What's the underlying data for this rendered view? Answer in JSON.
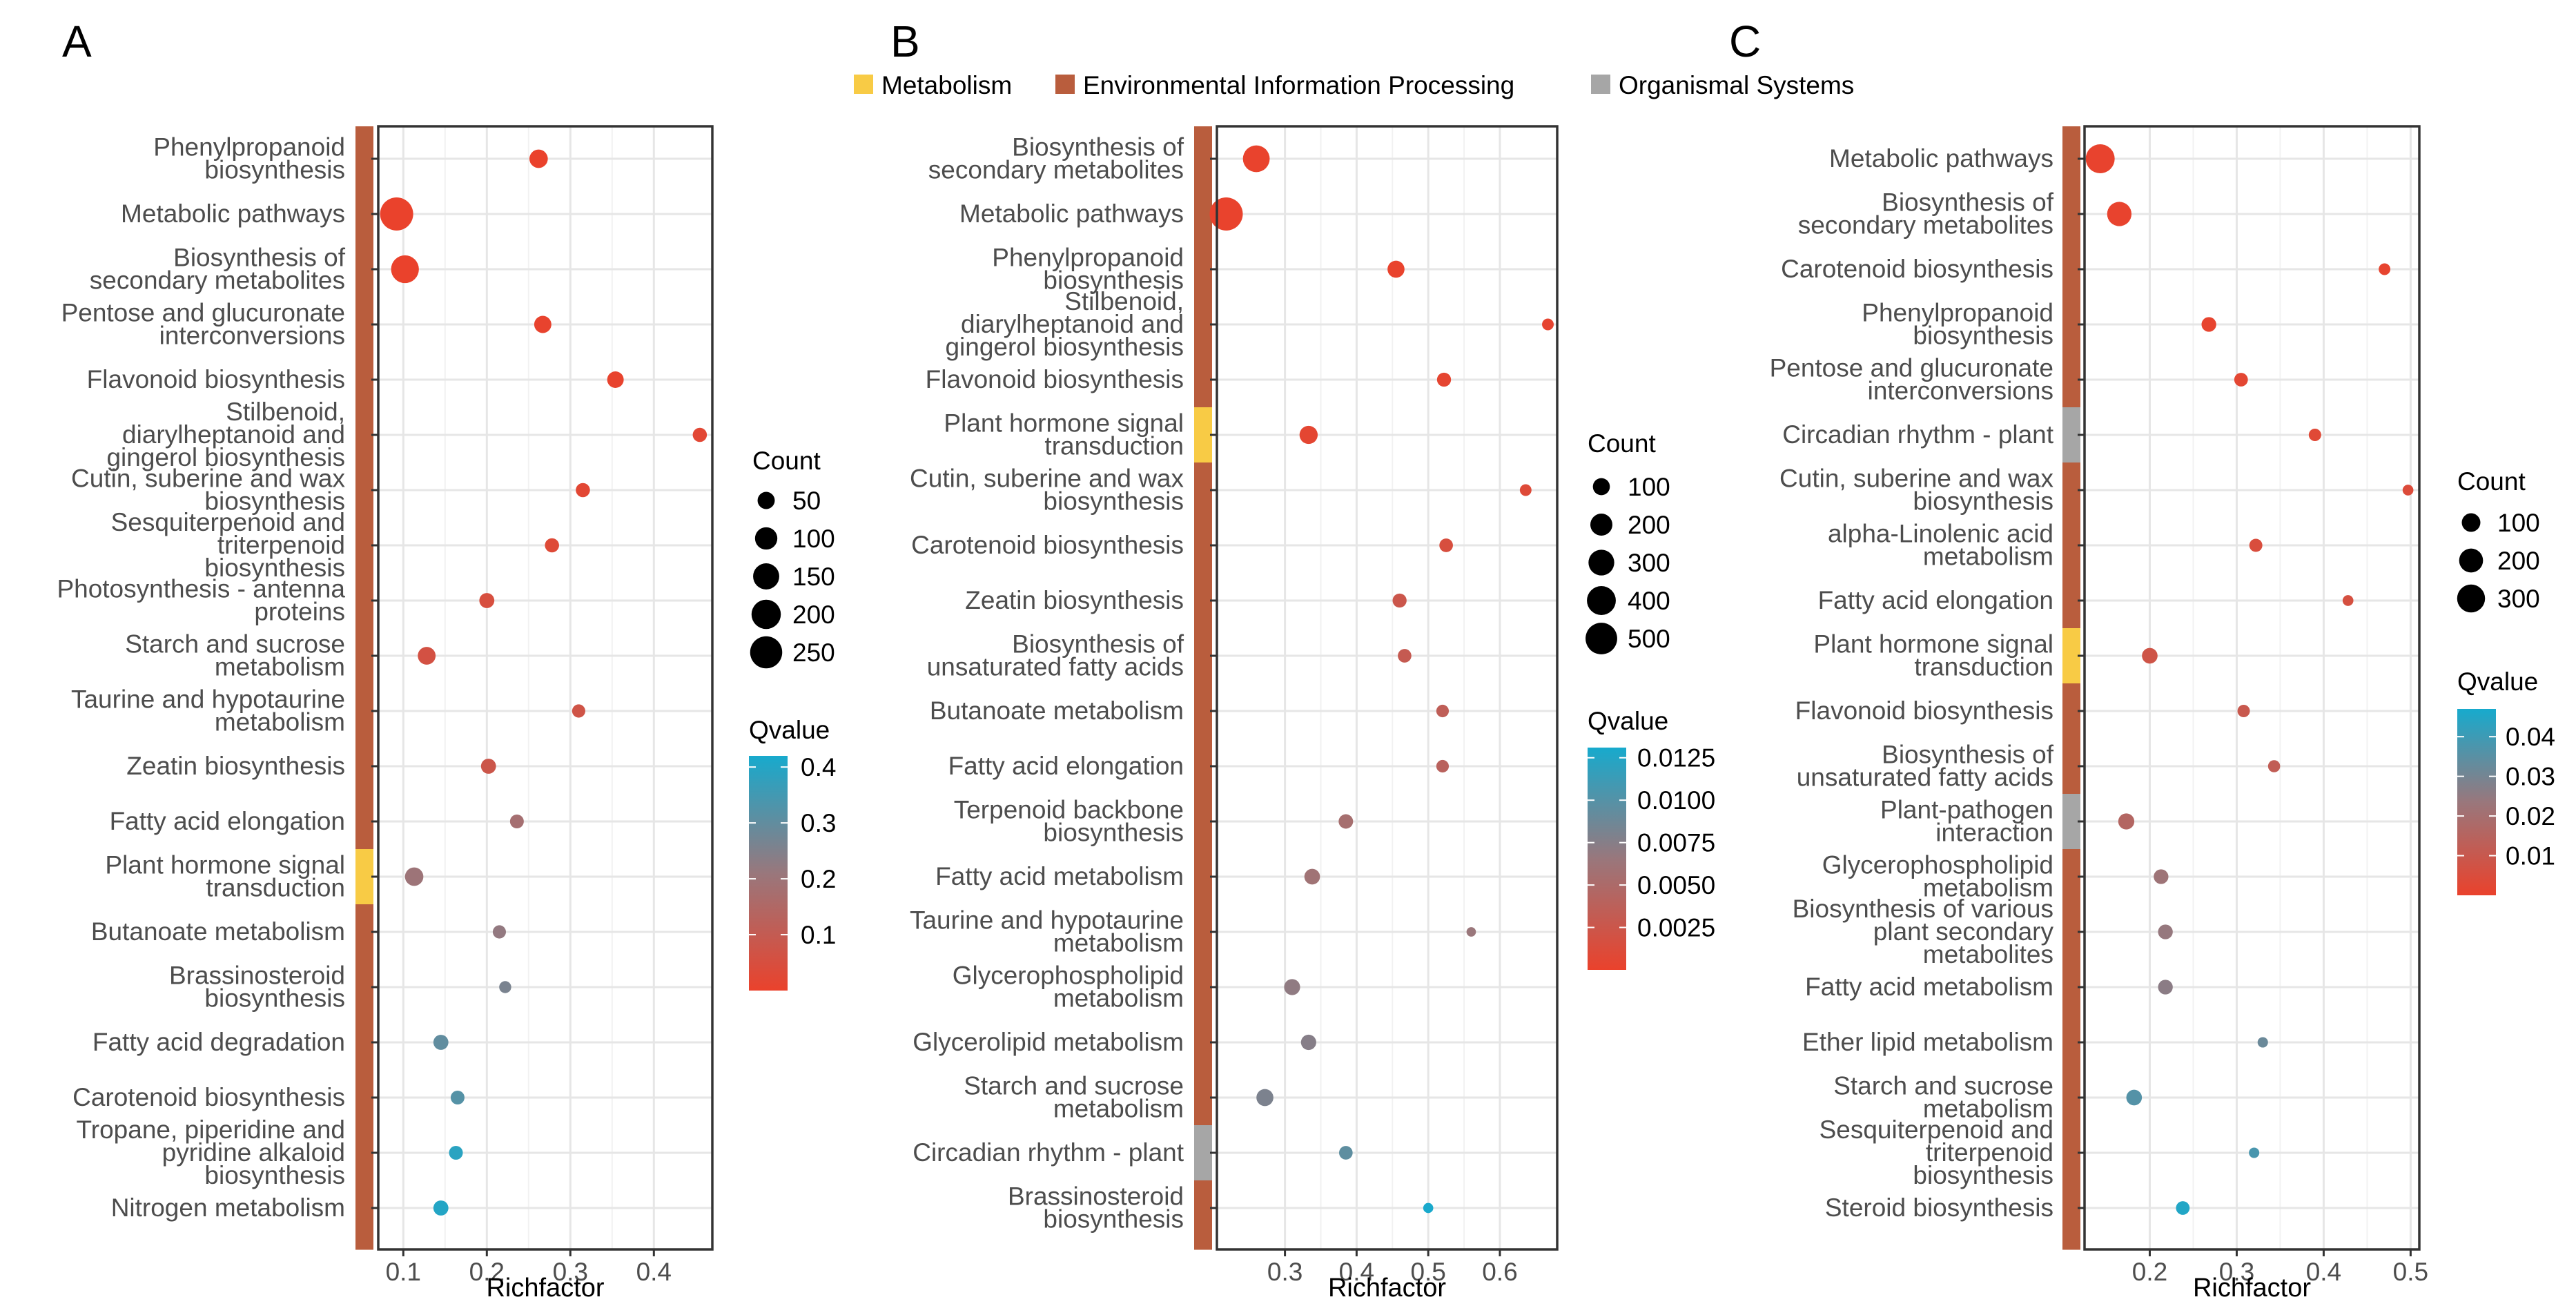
{
  "figure": {
    "legend_top": {
      "items": [
        {
          "label": "Metabolism",
          "color": "#F8CB45"
        },
        {
          "label": "Environmental Information Processing",
          "color": "#B95D3D"
        },
        {
          "label": "Organismal Systems",
          "color": "#A6A6A6"
        }
      ]
    }
  },
  "chart_data": [
    {
      "panel": "A",
      "type": "scatter",
      "xlabel": "Richfactor",
      "xlim": [
        0.07,
        0.47
      ],
      "xticks": [
        0.1,
        0.2,
        0.3,
        0.4
      ],
      "tick_labels": [
        "0.1",
        "0.2",
        "0.3",
        "0.4"
      ],
      "count_legend": {
        "title": "Count",
        "values": [
          50,
          100,
          150,
          200,
          250
        ],
        "labels": [
          "50",
          "100",
          "150",
          "200",
          "250"
        ]
      },
      "count_range": [
        10,
        270
      ],
      "qvalue_legend": {
        "title": "Qvalue",
        "range": [
          0.0,
          0.42
        ],
        "ticks": [
          0.1,
          0.2,
          0.3,
          0.4
        ],
        "labels": [
          "0.1",
          "0.2",
          "0.3",
          "0.4"
        ]
      },
      "pathways": [
        {
          "label": [
            "Phenylpropanoid",
            "biosynthesis"
          ],
          "rich": 0.262,
          "count": 60,
          "q": 0.001,
          "cat": "Environmental Information Processing"
        },
        {
          "label": [
            "Metabolic pathways"
          ],
          "rich": 0.092,
          "count": 270,
          "q": 0.001,
          "cat": "Environmental Information Processing"
        },
        {
          "label": [
            "Biosynthesis of",
            "secondary metabolites"
          ],
          "rich": 0.102,
          "count": 175,
          "q": 0.001,
          "cat": "Environmental Information Processing"
        },
        {
          "label": [
            "Pentose and glucuronate",
            "interconversions"
          ],
          "rich": 0.267,
          "count": 50,
          "q": 0.005,
          "cat": "Environmental Information Processing"
        },
        {
          "label": [
            "Flavonoid biosynthesis"
          ],
          "rich": 0.354,
          "count": 45,
          "q": 0.005,
          "cat": "Environmental Information Processing"
        },
        {
          "label": [
            "Stilbenoid,",
            "diarylheptanoid and",
            "gingerol biosynthesis"
          ],
          "rich": 0.455,
          "count": 30,
          "q": 0.02,
          "cat": "Environmental Information Processing"
        },
        {
          "label": [
            "Cutin, suberine and wax",
            "biosynthesis"
          ],
          "rich": 0.315,
          "count": 30,
          "q": 0.02,
          "cat": "Environmental Information Processing"
        },
        {
          "label": [
            "Sesquiterpenoid and",
            "triterpenoid",
            "biosynthesis"
          ],
          "rich": 0.278,
          "count": 30,
          "q": 0.03,
          "cat": "Environmental Information Processing"
        },
        {
          "label": [
            "Photosynthesis - antenna",
            "proteins"
          ],
          "rich": 0.2,
          "count": 35,
          "q": 0.05,
          "cat": "Environmental Information Processing"
        },
        {
          "label": [
            "Starch and sucrose",
            "metabolism"
          ],
          "rich": 0.128,
          "count": 55,
          "q": 0.06,
          "cat": "Environmental Information Processing"
        },
        {
          "label": [
            "Taurine and hypotaurine",
            "metabolism"
          ],
          "rich": 0.31,
          "count": 25,
          "q": 0.07,
          "cat": "Environmental Information Processing"
        },
        {
          "label": [
            "Zeatin biosynthesis"
          ],
          "rich": 0.202,
          "count": 35,
          "q": 0.08,
          "cat": "Environmental Information Processing"
        },
        {
          "label": [
            "Fatty acid elongation"
          ],
          "rich": 0.236,
          "count": 28,
          "q": 0.18,
          "cat": "Environmental Information Processing"
        },
        {
          "label": [
            "Plant hormone signal",
            "transduction"
          ],
          "rich": 0.113,
          "count": 60,
          "q": 0.2,
          "cat": "Metabolism"
        },
        {
          "label": [
            "Butanoate metabolism"
          ],
          "rich": 0.215,
          "count": 25,
          "q": 0.22,
          "cat": "Environmental Information Processing"
        },
        {
          "label": [
            "Brassinosteroid",
            "biosynthesis"
          ],
          "rich": 0.222,
          "count": 20,
          "q": 0.26,
          "cat": "Environmental Information Processing"
        },
        {
          "label": [
            "Fatty acid degradation"
          ],
          "rich": 0.145,
          "count": 35,
          "q": 0.3,
          "cat": "Environmental Information Processing"
        },
        {
          "label": [
            "Carotenoid biosynthesis"
          ],
          "rich": 0.165,
          "count": 28,
          "q": 0.32,
          "cat": "Environmental Information Processing"
        },
        {
          "label": [
            "Tropane, piperidine and",
            "pyridine alkaloid",
            "biosynthesis"
          ],
          "rich": 0.163,
          "count": 28,
          "q": 0.39,
          "cat": "Environmental Information Processing"
        },
        {
          "label": [
            "Nitrogen metabolism"
          ],
          "rich": 0.145,
          "count": 35,
          "q": 0.4,
          "cat": "Environmental Information Processing"
        }
      ]
    },
    {
      "panel": "B",
      "type": "scatter",
      "xlabel": "Richfactor",
      "xlim": [
        0.205,
        0.68
      ],
      "xticks": [
        0.3,
        0.4,
        0.5,
        0.6
      ],
      "tick_labels": [
        "0.3",
        "0.4",
        "0.5",
        "0.6"
      ],
      "count_legend": {
        "title": "Count",
        "values": [
          100,
          200,
          300,
          400,
          500
        ],
        "labels": [
          "100",
          "200",
          "300",
          "400",
          "500"
        ]
      },
      "count_range": [
        20,
        560
      ],
      "qvalue_legend": {
        "title": "Qvalue",
        "range": [
          0.0,
          0.0131
        ],
        "ticks": [
          0.0025,
          0.005,
          0.0075,
          0.01,
          0.0125
        ],
        "labels": [
          "0.0025",
          "0.0050",
          "0.0075",
          "0.0100",
          "0.0125"
        ]
      },
      "pathways": [
        {
          "label": [
            "Biosynthesis of",
            "secondary metabolites"
          ],
          "rich": 0.26,
          "count": 330,
          "q": 0.0001,
          "cat": "Environmental Information Processing"
        },
        {
          "label": [
            "Metabolic pathways"
          ],
          "rich": 0.218,
          "count": 560,
          "q": 0.0001,
          "cat": "Environmental Information Processing"
        },
        {
          "label": [
            "Phenylpropanoid",
            "biosynthesis"
          ],
          "rich": 0.455,
          "count": 100,
          "q": 0.0001,
          "cat": "Environmental Information Processing"
        },
        {
          "label": [
            "Stilbenoid,",
            "diarylheptanoid and",
            "gingerol biosynthesis"
          ],
          "rich": 0.667,
          "count": 38,
          "q": 0.0003,
          "cat": "Environmental Information Processing"
        },
        {
          "label": [
            "Flavonoid biosynthesis"
          ],
          "rich": 0.522,
          "count": 60,
          "q": 0.0004,
          "cat": "Environmental Information Processing"
        },
        {
          "label": [
            "Plant hormone signal",
            "transduction"
          ],
          "rich": 0.333,
          "count": 120,
          "q": 0.0005,
          "cat": "Metabolism"
        },
        {
          "label": [
            "Cutin, suberine and wax",
            "biosynthesis"
          ],
          "rich": 0.636,
          "count": 38,
          "q": 0.001,
          "cat": "Environmental Information Processing"
        },
        {
          "label": [
            "Carotenoid biosynthesis"
          ],
          "rich": 0.525,
          "count": 55,
          "q": 0.0015,
          "cat": "Environmental Information Processing"
        },
        {
          "label": [
            "Zeatin biosynthesis"
          ],
          "rich": 0.46,
          "count": 60,
          "q": 0.0025,
          "cat": "Environmental Information Processing"
        },
        {
          "label": [
            "Biosynthesis of",
            "unsaturated fatty acids"
          ],
          "rich": 0.467,
          "count": 55,
          "q": 0.003,
          "cat": "Environmental Information Processing"
        },
        {
          "label": [
            "Butanoate metabolism"
          ],
          "rich": 0.52,
          "count": 45,
          "q": 0.0035,
          "cat": "Environmental Information Processing"
        },
        {
          "label": [
            "Fatty acid elongation"
          ],
          "rich": 0.52,
          "count": 45,
          "q": 0.004,
          "cat": "Environmental Information Processing"
        },
        {
          "label": [
            "Terpenoid backbone",
            "biosynthesis"
          ],
          "rich": 0.385,
          "count": 65,
          "q": 0.0055,
          "cat": "Environmental Information Processing"
        },
        {
          "label": [
            "Fatty acid metabolism"
          ],
          "rich": 0.338,
          "count": 80,
          "q": 0.006,
          "cat": "Environmental Information Processing"
        },
        {
          "label": [
            "Taurine and hypotaurine",
            "metabolism"
          ],
          "rich": 0.56,
          "count": 25,
          "q": 0.0065,
          "cat": "Environmental Information Processing"
        },
        {
          "label": [
            "Glycerophospholipid",
            "metabolism"
          ],
          "rich": 0.31,
          "count": 85,
          "q": 0.007,
          "cat": "Environmental Information Processing"
        },
        {
          "label": [
            "Glycerolipid metabolism"
          ],
          "rich": 0.333,
          "count": 75,
          "q": 0.0075,
          "cat": "Environmental Information Processing"
        },
        {
          "label": [
            "Starch and sucrose",
            "metabolism"
          ],
          "rich": 0.272,
          "count": 100,
          "q": 0.008,
          "cat": "Environmental Information Processing"
        },
        {
          "label": [
            "Circadian rhythm - plant"
          ],
          "rich": 0.385,
          "count": 55,
          "q": 0.0095,
          "cat": "Organismal Systems"
        },
        {
          "label": [
            "Brassinosteroid",
            "biosynthesis"
          ],
          "rich": 0.5,
          "count": 28,
          "q": 0.013,
          "cat": "Environmental Information Processing"
        }
      ]
    },
    {
      "panel": "C",
      "type": "scatter",
      "xlabel": "Richfactor",
      "xlim": [
        0.125,
        0.51
      ],
      "xticks": [
        0.2,
        0.3,
        0.4,
        0.5
      ],
      "tick_labels": [
        "0.2",
        "0.3",
        "0.4",
        "0.5"
      ],
      "count_legend": {
        "title": "Count",
        "values": [
          100,
          200,
          300
        ],
        "labels": [
          "100",
          "200",
          "300"
        ]
      },
      "count_range": [
        10,
        330
      ],
      "qvalue_legend": {
        "title": "Qvalue",
        "range": [
          0.0,
          0.047
        ],
        "ticks": [
          0.01,
          0.02,
          0.03,
          0.04
        ],
        "labels": [
          "0.01",
          "0.02",
          "0.03",
          "0.04"
        ]
      },
      "pathways": [
        {
          "label": [
            "Metabolic pathways"
          ],
          "rich": 0.143,
          "count": 330,
          "q": 0.0005,
          "cat": "Environmental Information Processing"
        },
        {
          "label": [
            "Biosynthesis of",
            "secondary metabolites"
          ],
          "rich": 0.165,
          "count": 210,
          "q": 0.0005,
          "cat": "Environmental Information Processing"
        },
        {
          "label": [
            "Carotenoid biosynthesis"
          ],
          "rich": 0.47,
          "count": 25,
          "q": 0.001,
          "cat": "Environmental Information Processing"
        },
        {
          "label": [
            "Phenylpropanoid",
            "biosynthesis"
          ],
          "rich": 0.268,
          "count": 50,
          "q": 0.001,
          "cat": "Environmental Information Processing"
        },
        {
          "label": [
            "Pentose and glucuronate",
            "interconversions"
          ],
          "rich": 0.305,
          "count": 40,
          "q": 0.002,
          "cat": "Environmental Information Processing"
        },
        {
          "label": [
            "Circadian rhythm - plant"
          ],
          "rich": 0.39,
          "count": 30,
          "q": 0.003,
          "cat": "Organismal Systems"
        },
        {
          "label": [
            "Cutin, suberine and wax",
            "biosynthesis"
          ],
          "rich": 0.497,
          "count": 20,
          "q": 0.004,
          "cat": "Environmental Information Processing"
        },
        {
          "label": [
            "alpha-Linolenic acid",
            "metabolism"
          ],
          "rich": 0.322,
          "count": 35,
          "q": 0.005,
          "cat": "Environmental Information Processing"
        },
        {
          "label": [
            "Fatty acid elongation"
          ],
          "rich": 0.428,
          "count": 20,
          "q": 0.006,
          "cat": "Environmental Information Processing"
        },
        {
          "label": [
            "Plant hormone signal",
            "transduction"
          ],
          "rich": 0.2,
          "count": 60,
          "q": 0.008,
          "cat": "Metabolism"
        },
        {
          "label": [
            "Flavonoid biosynthesis"
          ],
          "rich": 0.308,
          "count": 30,
          "q": 0.01,
          "cat": "Environmental Information Processing"
        },
        {
          "label": [
            "Biosynthesis of",
            "unsaturated fatty acids"
          ],
          "rich": 0.343,
          "count": 28,
          "q": 0.012,
          "cat": "Environmental Information Processing"
        },
        {
          "label": [
            "Plant-pathogen",
            "interaction"
          ],
          "rich": 0.173,
          "count": 65,
          "q": 0.016,
          "cat": "Organismal Systems"
        },
        {
          "label": [
            "Glycerophospholipid",
            "metabolism"
          ],
          "rich": 0.213,
          "count": 50,
          "q": 0.022,
          "cat": "Environmental Information Processing"
        },
        {
          "label": [
            "Biosynthesis of various",
            "plant secondary",
            "metabolites"
          ],
          "rich": 0.218,
          "count": 50,
          "q": 0.024,
          "cat": "Environmental Information Processing"
        },
        {
          "label": [
            "Fatty acid metabolism"
          ],
          "rich": 0.218,
          "count": 50,
          "q": 0.026,
          "cat": "Environmental Information Processing"
        },
        {
          "label": [
            "Ether lipid metabolism"
          ],
          "rich": 0.33,
          "count": 18,
          "q": 0.032,
          "cat": "Environmental Information Processing"
        },
        {
          "label": [
            "Starch and sucrose",
            "metabolism"
          ],
          "rich": 0.182,
          "count": 60,
          "q": 0.036,
          "cat": "Environmental Information Processing"
        },
        {
          "label": [
            "Sesquiterpenoid and",
            "triterpenoid",
            "biosynthesis"
          ],
          "rich": 0.32,
          "count": 18,
          "q": 0.038,
          "cat": "Environmental Information Processing"
        },
        {
          "label": [
            "Steroid biosynthesis"
          ],
          "rich": 0.238,
          "count": 40,
          "q": 0.045,
          "cat": "Environmental Information Processing"
        }
      ]
    }
  ]
}
